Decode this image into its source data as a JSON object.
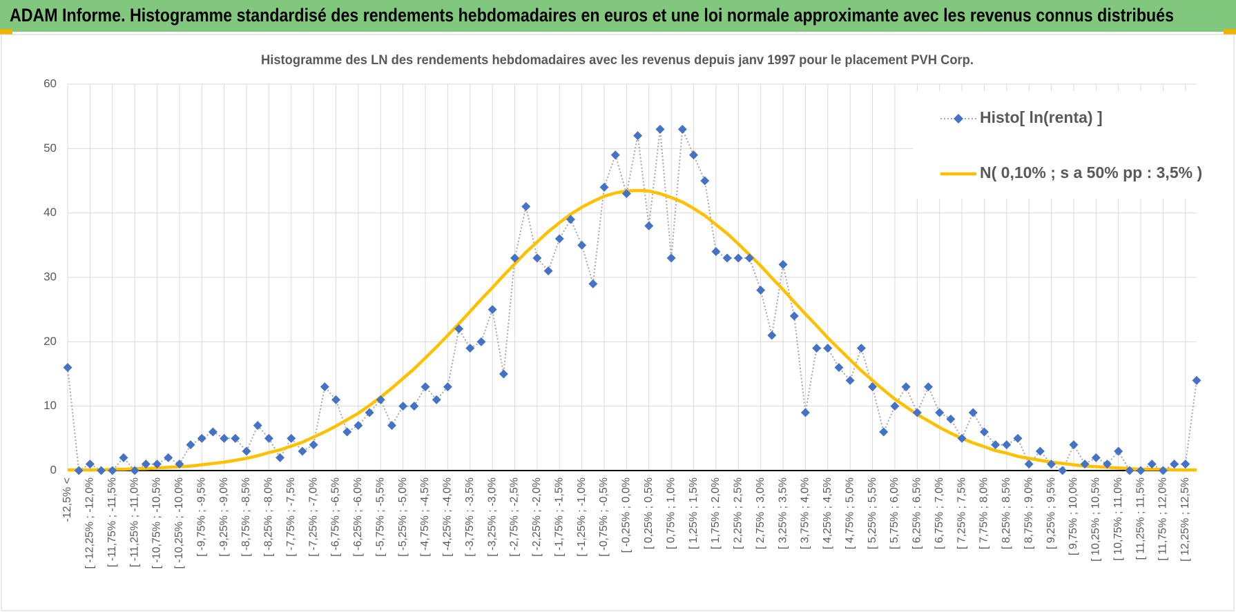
{
  "header": {
    "title": "ADAM Informe. Histogramme standardisé des rendements hebdomadaires en euros et une loi normale approximante avec les revenus connus distribués"
  },
  "chart_data": {
    "type": "line",
    "title": "Histogramme des LN des rendements hebdomadaires avec les revenus depuis janv 1997 pour le placement PVH Corp.",
    "categories": [
      "-12,5% <",
      null,
      "[ -12,25% ; -12,0%",
      null,
      "[ -11,75% ; -11,5%",
      null,
      "[ -11,25% ; -11,0%",
      null,
      "[ -10,75% ; -10,5%",
      null,
      "[ -10,25% ; -10,0%",
      null,
      "[ -9,75% ; -9,5%",
      null,
      "[ -9,25% ; -9,0%",
      null,
      "[ -8,75% ; -8,5%",
      null,
      "[ -8,25% ; -8,0%",
      null,
      "[ -7,75% ; -7,5%",
      null,
      "[ -7,25% ; -7,0%",
      null,
      "[ -6,75% ; -6,5%",
      null,
      "[ -6,25% ; -6,0%",
      null,
      "[ -5,75% ; -5,5%",
      null,
      "[ -5,25% ; -5,0%",
      null,
      "[ -4,75% ; -4,5%",
      null,
      "[ -4,25% ; -4,0%",
      null,
      "[ -3,75% ; -3,5%",
      null,
      "[ -3,25% ; -3,0%",
      null,
      "[ -2,75% ; -2,5%",
      null,
      "[ -2,25% ; -2,0%",
      null,
      "[ -1,75% ; -1,5%",
      null,
      "[ -1,25% ; -1,0%",
      null,
      "[ -0,75% ; -0,5%",
      null,
      "[ -0,25% ; 0,0%",
      null,
      "[ 0,25% ; 0,5%",
      null,
      "[ 0,75% ; 1,0%",
      null,
      "[ 1,25% ; 1,5%",
      null,
      "[ 1,75% ; 2,0%",
      null,
      "[ 2,25% ; 2,5%",
      null,
      "[ 2,75% ; 3,0%",
      null,
      "[ 3,25% ; 3,5%",
      null,
      "[ 3,75% ; 4,0%",
      null,
      "[ 4,25% ; 4,5%",
      null,
      "[ 4,75% ; 5,0%",
      null,
      "[ 5,25% ; 5,5%",
      null,
      "[ 5,75% ; 6,0%",
      null,
      "[ 6,25% ; 6,5%",
      null,
      "[ 6,75% ; 7,0%",
      null,
      "[ 7,25% ; 7,5%",
      null,
      "[ 7,75% ; 8,0%",
      null,
      "[ 8,25% ; 8,5%",
      null,
      "[ 8,75% ; 9,0%",
      null,
      "[ 9,25% ; 9,5%",
      null,
      "[ 9,75% ; 10,0%",
      null,
      "[ 10,25% ; 10,5%",
      null,
      "[ 10,75% ; 11,0%",
      null,
      "[ 11,25% ; 11,5%",
      null,
      "[ 11,75% ; 12,0%",
      null,
      "[ 12,25% ; 12,5%",
      null
    ],
    "series": [
      {
        "name": "Histo[ ln(renta) ]",
        "color": "#4472c4",
        "marker": "diamond",
        "linestyle": "dotted",
        "values": [
          16,
          0,
          1,
          0,
          0,
          2,
          0,
          1,
          1,
          2,
          1,
          4,
          5,
          6,
          5,
          5,
          3,
          7,
          5,
          2,
          5,
          3,
          4,
          13,
          11,
          6,
          7,
          9,
          11,
          7,
          10,
          10,
          13,
          11,
          13,
          22,
          19,
          20,
          25,
          15,
          33,
          41,
          33,
          31,
          36,
          39,
          35,
          29,
          44,
          49,
          43,
          52,
          38,
          53,
          33,
          53,
          49,
          45,
          34,
          33,
          33,
          33,
          28,
          21,
          32,
          24,
          9,
          19,
          19,
          16,
          14,
          19,
          13,
          6,
          10,
          13,
          9,
          13,
          9,
          8,
          5,
          9,
          6,
          4,
          4,
          5,
          1,
          3,
          1,
          0,
          4,
          1,
          2,
          1,
          3,
          0,
          0,
          1,
          0,
          1,
          1,
          14
        ]
      },
      {
        "name": "N( 0,10% ; s a 50% pp : 3,5% )",
        "color": "#ffc000",
        "marker": "none",
        "linestyle": "solid",
        "values": [
          0.1,
          0.1,
          0.1,
          0.1,
          0.2,
          0.2,
          0.3,
          0.3,
          0.4,
          0.5,
          0.6,
          0.7,
          0.9,
          1.1,
          1.3,
          1.6,
          1.9,
          2.3,
          2.8,
          3.2,
          3.8,
          4.4,
          5.2,
          6.0,
          6.9,
          7.9,
          8.9,
          10.1,
          11.4,
          12.8,
          14.3,
          15.8,
          17.5,
          19.2,
          21.0,
          22.8,
          24.7,
          26.6,
          28.4,
          30.3,
          32.1,
          33.9,
          35.5,
          37.1,
          38.5,
          39.8,
          40.9,
          41.8,
          42.6,
          43.1,
          43.4,
          43.5,
          43.4,
          43.0,
          42.4,
          41.7,
          40.7,
          39.6,
          38.2,
          36.8,
          35.2,
          33.5,
          31.8,
          29.9,
          28.1,
          26.2,
          24.3,
          22.5,
          20.6,
          18.9,
          17.2,
          15.5,
          14.0,
          12.5,
          11.1,
          9.9,
          8.7,
          7.7,
          6.7,
          5.8,
          5.0,
          4.3,
          3.7,
          3.1,
          2.7,
          2.2,
          1.9,
          1.6,
          1.3,
          1.1,
          0.9,
          0.7,
          0.6,
          0.5,
          0.4,
          0.3,
          0.2,
          0.2,
          0.2,
          0.1,
          0.1,
          0.1
        ]
      }
    ],
    "ylim": [
      0,
      60
    ],
    "yticks": [
      0,
      10,
      20,
      30,
      40,
      50,
      60
    ],
    "grid": true,
    "legend": "upper right"
  }
}
